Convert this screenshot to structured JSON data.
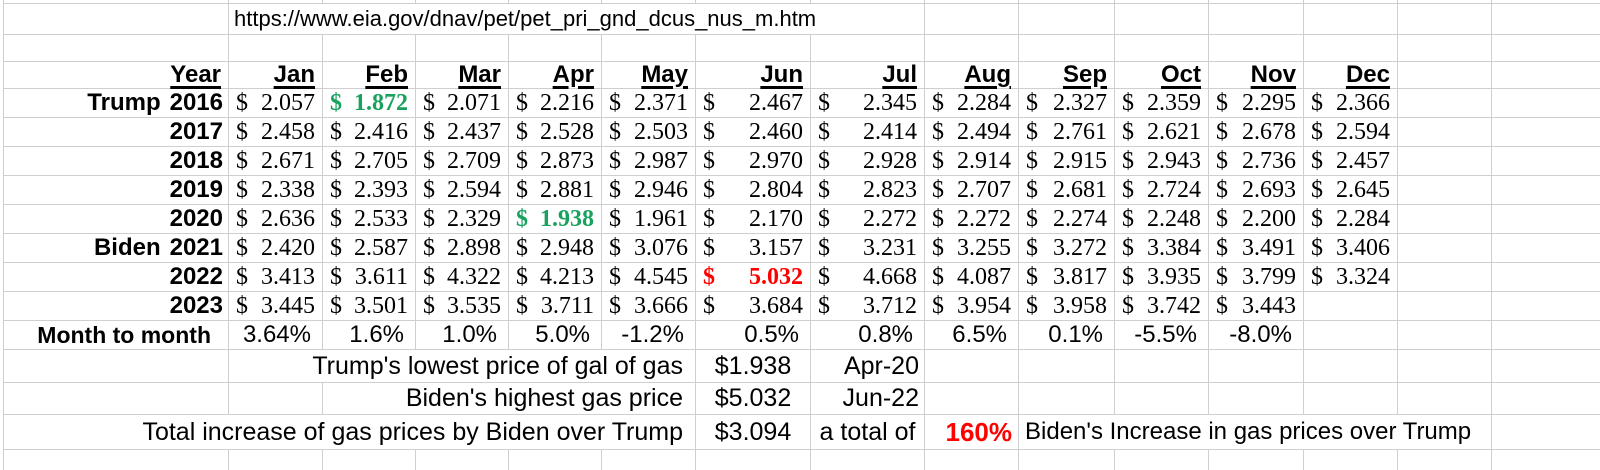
{
  "url": "https://www.eia.gov/dnav/pet/pet_pri_gnd_dcus_nus_m.htm",
  "colors": {
    "green": "#19a15e",
    "red": "#ff0000",
    "gridline": "#cfcfcf"
  },
  "table": {
    "year_header": "Year",
    "currency_symbol": "$",
    "months": [
      "Jan",
      "Feb",
      "Mar",
      "Apr",
      "May",
      "Jun",
      "Jul",
      "Aug",
      "Sep",
      "Oct",
      "Nov",
      "Dec"
    ],
    "rows": [
      {
        "leader": "Trump",
        "year": "2016",
        "prices": [
          "2.057",
          "1.872",
          "2.071",
          "2.216",
          "2.371",
          "2.467",
          "2.345",
          "2.284",
          "2.327",
          "2.359",
          "2.295",
          "2.366"
        ],
        "special": {
          "1": "green"
        }
      },
      {
        "leader": "",
        "year": "2017",
        "prices": [
          "2.458",
          "2.416",
          "2.437",
          "2.528",
          "2.503",
          "2.460",
          "2.414",
          "2.494",
          "2.761",
          "2.621",
          "2.678",
          "2.594"
        ]
      },
      {
        "leader": "",
        "year": "2018",
        "prices": [
          "2.671",
          "2.705",
          "2.709",
          "2.873",
          "2.987",
          "2.970",
          "2.928",
          "2.914",
          "2.915",
          "2.943",
          "2.736",
          "2.457"
        ]
      },
      {
        "leader": "",
        "year": "2019",
        "prices": [
          "2.338",
          "2.393",
          "2.594",
          "2.881",
          "2.946",
          "2.804",
          "2.823",
          "2.707",
          "2.681",
          "2.724",
          "2.693",
          "2.645"
        ]
      },
      {
        "leader": "",
        "year": "2020",
        "prices": [
          "2.636",
          "2.533",
          "2.329",
          "1.938",
          "1.961",
          "2.170",
          "2.272",
          "2.272",
          "2.274",
          "2.248",
          "2.200",
          "2.284"
        ],
        "special": {
          "3": "green"
        }
      },
      {
        "leader": "Biden",
        "year": "2021",
        "prices": [
          "2.420",
          "2.587",
          "2.898",
          "2.948",
          "3.076",
          "3.157",
          "3.231",
          "3.255",
          "3.272",
          "3.384",
          "3.491",
          "3.406"
        ]
      },
      {
        "leader": "",
        "year": "2022",
        "prices": [
          "3.413",
          "3.611",
          "4.322",
          "4.213",
          "4.545",
          "5.032",
          "4.668",
          "4.087",
          "3.817",
          "3.935",
          "3.799",
          "3.324"
        ],
        "special": {
          "5": "red"
        }
      },
      {
        "leader": "",
        "year": "2023",
        "prices": [
          "3.445",
          "3.501",
          "3.535",
          "3.711",
          "3.666",
          "3.684",
          "3.712",
          "3.954",
          "3.958",
          "3.742",
          "3.443",
          ""
        ]
      }
    ],
    "month_to_month": {
      "label": "Month to month",
      "values": [
        "3.64%",
        "1.6%",
        "1.0%",
        "5.0%",
        "-1.2%",
        "0.5%",
        "0.8%",
        "6.5%",
        "0.1%",
        "-5.5%",
        "-8.0%",
        ""
      ]
    }
  },
  "summary": [
    {
      "label": "Trump's lowest price of gal of gas",
      "value": "$1.938",
      "note": "Apr-20"
    },
    {
      "label": "Biden's highest gas price",
      "value": "$5.032",
      "note": "Jun-22"
    },
    {
      "label": "Total increase of gas prices by Biden over Trump",
      "value": "$3.094",
      "note": "a total of",
      "percent": "160%",
      "tail": "Biden's Increase in gas prices over Trump"
    }
  ]
}
